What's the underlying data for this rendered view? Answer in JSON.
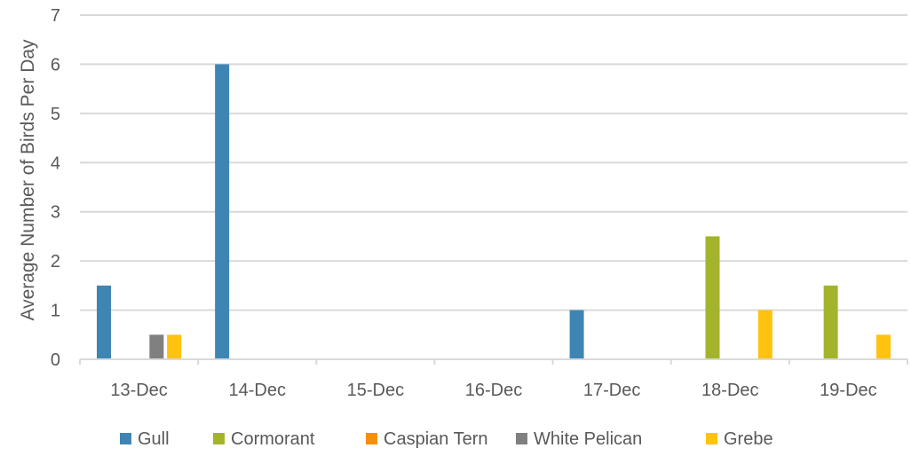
{
  "chart_data": {
    "type": "bar",
    "title": "",
    "xlabel": "",
    "ylabel": "Average Number of Birds Per Day",
    "ylim": [
      0,
      7
    ],
    "yticks": [
      0,
      1,
      2,
      3,
      4,
      5,
      6,
      7
    ],
    "grid": "horizontal",
    "legend_position": "bottom",
    "categories": [
      "13-Dec",
      "14-Dec",
      "15-Dec",
      "16-Dec",
      "17-Dec",
      "18-Dec",
      "19-Dec"
    ],
    "series": [
      {
        "name": "Gull",
        "color": "#3f85b4",
        "values": [
          1.5,
          6,
          0,
          0,
          1,
          0,
          0
        ]
      },
      {
        "name": "Cormorant",
        "color": "#a3b42c",
        "values": [
          0,
          0,
          0,
          0,
          0,
          2.5,
          1.5
        ]
      },
      {
        "name": "Caspian Tern",
        "color": "#f5900c",
        "values": [
          0,
          0,
          0,
          0,
          0,
          0,
          0
        ]
      },
      {
        "name": "White Pelican",
        "color": "#808080",
        "values": [
          0.5,
          0,
          0,
          0,
          0,
          0,
          0
        ]
      },
      {
        "name": "Grebe",
        "color": "#ffc20e",
        "values": [
          0.5,
          0,
          0,
          0,
          0,
          1,
          0.5
        ]
      }
    ]
  }
}
